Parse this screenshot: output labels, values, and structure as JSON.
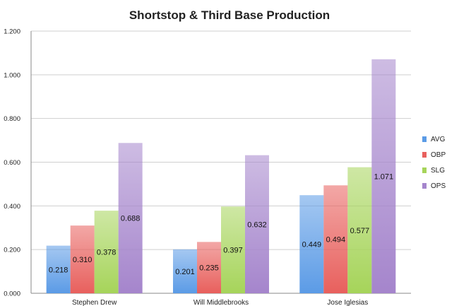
{
  "chart_data": {
    "type": "bar",
    "title": "Shortstop & Third Base Production",
    "categories": [
      "Stephen Drew",
      "Will Middlebrooks",
      "Jose Iglesias"
    ],
    "series": [
      {
        "name": "AVG",
        "values": [
          0.218,
          0.201,
          0.449
        ],
        "color": "#5b9be6"
      },
      {
        "name": "OBP",
        "values": [
          0.31,
          0.235,
          0.494
        ],
        "color": "#e8605d"
      },
      {
        "name": "SLG",
        "values": [
          0.378,
          0.397,
          0.577
        ],
        "color": "#a6d45a"
      },
      {
        "name": "OPS",
        "values": [
          0.688,
          0.632,
          1.071
        ],
        "color": "#a585cc"
      }
    ],
    "data_labels": [
      [
        "0.218",
        "0.201",
        "0.449"
      ],
      [
        "0.310",
        "0.235",
        "0.494"
      ],
      [
        "0.378",
        "0.397",
        "0.577"
      ],
      [
        "0.688",
        "0.632",
        "1.071"
      ]
    ],
    "y_ticks": [
      "0.000",
      "0.200",
      "0.400",
      "0.600",
      "0.800",
      "1.000",
      "1.200"
    ],
    "ylim": [
      0,
      1.2
    ],
    "xlabel": "",
    "ylabel": "",
    "grid": true,
    "legend_position": "right"
  }
}
